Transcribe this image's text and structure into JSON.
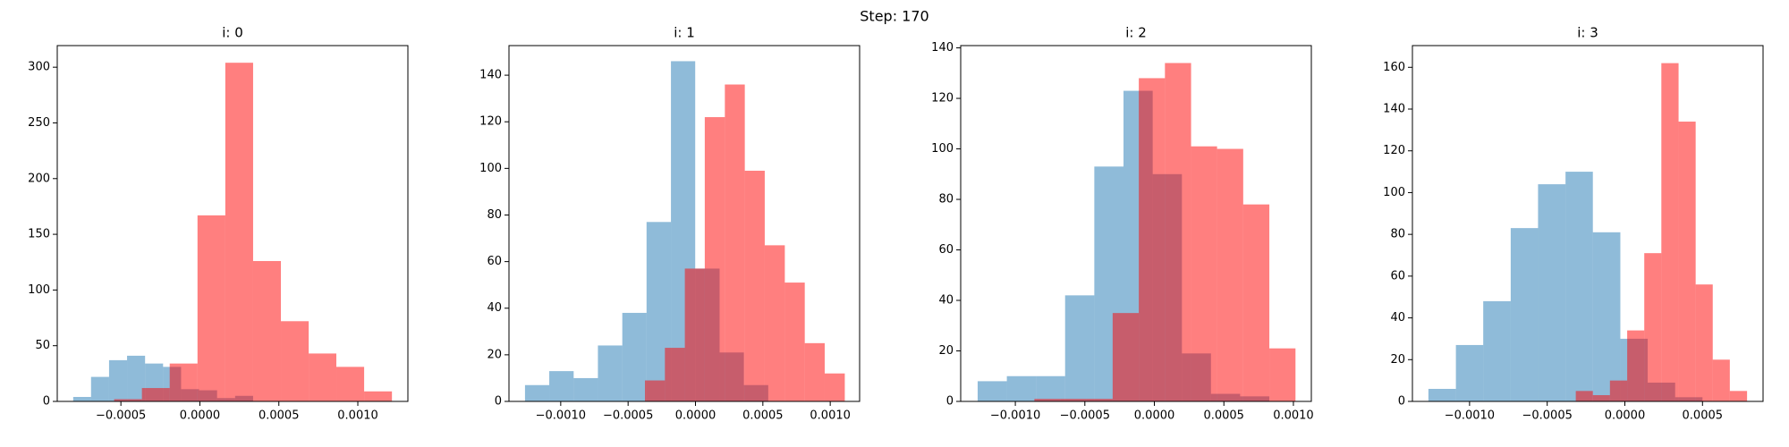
{
  "title": "Step: 170",
  "chart_data": [
    {
      "type": "histogram",
      "title": "i: 0",
      "xlim": [
        -0.000903,
        0.001317
      ],
      "ylim": [
        0,
        319.4
      ],
      "xticks": [
        {
          "value": -0.0005,
          "label": "−0.0005"
        },
        {
          "value": 0,
          "label": "0.0000"
        },
        {
          "value": 0.0005,
          "label": "0.0005"
        },
        {
          "value": 0.001,
          "label": "0.0010"
        }
      ],
      "yticks": [
        0,
        50,
        100,
        150,
        200,
        250,
        300
      ],
      "opacity": 0.5,
      "series": [
        {
          "color": "#1f77b4",
          "bins": [
            -0.000802,
            -0.000689,
            -0.000575,
            -0.000461,
            -0.000347,
            -0.000233,
            -0.000119,
            -5e-06,
            0.000109,
            0.000223,
            0.000337
          ],
          "values": [
            4,
            22,
            37,
            41,
            34,
            31,
            11,
            10,
            3,
            5
          ]
        },
        {
          "color": "#ff0000",
          "bins": [
            -0.000543,
            -0.000367,
            -0.000191,
            -1.5e-05,
            0.000161,
            0.000337,
            0.000513,
            0.000689,
            0.000864,
            0.00104,
            0.001216
          ],
          "values": [
            2,
            12,
            34,
            167,
            304,
            126,
            72,
            43,
            31,
            9
          ]
        }
      ]
    },
    {
      "type": "histogram",
      "title": "i: 1",
      "xlim": [
        -0.001384,
        0.001218
      ],
      "ylim": [
        0,
        152.7
      ],
      "xticks": [
        {
          "value": -0.001,
          "label": "−0.0010"
        },
        {
          "value": -0.0005,
          "label": "−0.0005"
        },
        {
          "value": 0,
          "label": "0.0000"
        },
        {
          "value": 0.0005,
          "label": "0.0005"
        },
        {
          "value": 0.001,
          "label": "0.0010"
        }
      ],
      "yticks": [
        0,
        20,
        40,
        60,
        80,
        100,
        120,
        140
      ],
      "opacity": 0.5,
      "series": [
        {
          "color": "#1f77b4",
          "bins": [
            -0.001265,
            -0.001085,
            -0.000904,
            -0.000724,
            -0.000543,
            -0.000363,
            -0.000182,
            -2e-06,
            0.000179,
            0.000359,
            0.00054
          ],
          "values": [
            7,
            13,
            10,
            24,
            38,
            77,
            146,
            57,
            21,
            7
          ]
        },
        {
          "color": "#ff0000",
          "bins": [
            -0.000375,
            -0.000227,
            -7.9e-05,
            6.9e-05,
            0.000218,
            0.000366,
            0.000514,
            0.000663,
            0.000811,
            0.000959,
            0.001108
          ],
          "values": [
            9,
            23,
            57,
            122,
            136,
            99,
            67,
            51,
            25,
            12
          ]
        }
      ]
    },
    {
      "type": "histogram",
      "title": "i: 2",
      "xlim": [
        -0.001393,
        0.001129
      ],
      "ylim": [
        0,
        140.9
      ],
      "xticks": [
        {
          "value": -0.001,
          "label": "−0.0010"
        },
        {
          "value": -0.0005,
          "label": "−0.0005"
        },
        {
          "value": 0,
          "label": "0.0000"
        },
        {
          "value": 0.0005,
          "label": "0.0005"
        },
        {
          "value": 0.001,
          "label": "0.0010"
        }
      ],
      "yticks": [
        0,
        20,
        40,
        60,
        80,
        100,
        120,
        140
      ],
      "opacity": 0.5,
      "series": [
        {
          "color": "#1f77b4",
          "bins": [
            -0.001271,
            -0.001061,
            -0.000851,
            -0.000642,
            -0.000432,
            -0.000222,
            -1.2e-05,
            0.000198,
            0.000407,
            0.000617,
            0.000827
          ],
          "values": [
            8,
            10,
            10,
            42,
            93,
            123,
            90,
            19,
            3,
            2
          ]
        },
        {
          "color": "#ff0000",
          "bins": [
            -0.000863,
            -0.000675,
            -0.000488,
            -0.0003,
            -0.000112,
            7.6e-05,
            0.000264,
            0.000451,
            0.000639,
            0.000827,
            0.001015
          ],
          "values": [
            1,
            1,
            1,
            35,
            128,
            134,
            101,
            100,
            78,
            21
          ]
        }
      ]
    },
    {
      "type": "histogram",
      "title": "i: 3",
      "xlim": [
        -0.001368,
        0.00089
      ],
      "ylim": [
        0,
        170.4
      ],
      "xticks": [
        {
          "value": -0.001,
          "label": "−0.0010"
        },
        {
          "value": -0.0005,
          "label": "−0.0005"
        },
        {
          "value": 0,
          "label": "0.0000"
        },
        {
          "value": 0.0005,
          "label": "0.0005"
        }
      ],
      "yticks": [
        0,
        20,
        40,
        60,
        80,
        100,
        120,
        140,
        160
      ],
      "opacity": 0.5,
      "series": [
        {
          "color": "#1f77b4",
          "bins": [
            -0.001265,
            -0.001088,
            -0.000912,
            -0.000735,
            -0.000559,
            -0.000382,
            -0.000206,
            -2.9e-05,
            0.000147,
            0.000324,
            0.0005
          ],
          "values": [
            6,
            27,
            48,
            83,
            104,
            110,
            81,
            30,
            9,
            2
          ]
        },
        {
          "color": "#ff0000",
          "bins": [
            -0.000316,
            -0.000206,
            -9.6e-05,
            1.5e-05,
            0.000125,
            0.000235,
            0.000346,
            0.000456,
            0.000566,
            0.000676,
            0.000787
          ],
          "values": [
            5,
            3,
            10,
            34,
            71,
            162,
            134,
            56,
            20,
            5
          ]
        }
      ]
    }
  ]
}
